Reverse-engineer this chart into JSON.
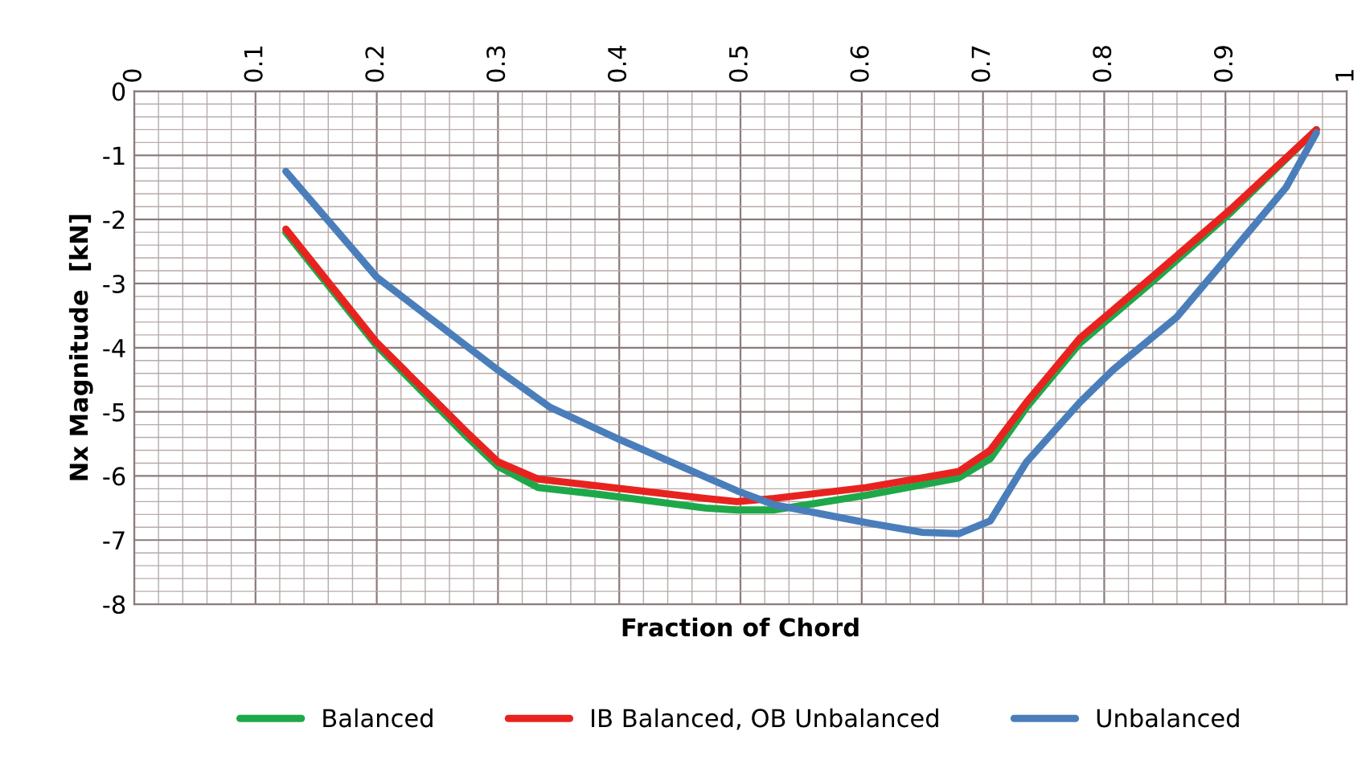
{
  "chart_data": {
    "type": "line",
    "xlabel": "Fraction of Chord",
    "ylabel": "Nx Magnitude  [kN]",
    "xlim": [
      0,
      1
    ],
    "ylim": [
      -8,
      0
    ],
    "xticks": [
      0,
      0.1,
      0.2,
      0.3,
      0.4,
      0.5,
      0.6,
      0.7,
      0.8,
      0.9,
      1
    ],
    "yticks": [
      -8,
      -7,
      -6,
      -5,
      -4,
      -3,
      -2,
      -1,
      0
    ],
    "grid": true,
    "legend": "bottom",
    "marker": "none",
    "line_style": "solid",
    "series": [
      {
        "name": "Balanced",
        "color": "#1fa84a",
        "x": [
          0.125,
          0.2,
          0.276,
          0.3,
          0.333,
          0.38,
          0.471,
          0.497,
          0.528,
          0.604,
          0.68,
          0.706,
          0.736,
          0.78,
          0.838,
          0.905,
          0.975
        ],
        "values": [
          -2.2,
          -3.97,
          -5.42,
          -5.85,
          -6.18,
          -6.28,
          -6.5,
          -6.53,
          -6.53,
          -6.3,
          -6.03,
          -5.73,
          -4.93,
          -3.93,
          -3.0,
          -1.88,
          -0.6
        ]
      },
      {
        "name": "IB Balanced, OB Unbalanced",
        "color": "#e8231f",
        "x": [
          0.125,
          0.2,
          0.276,
          0.3,
          0.333,
          0.38,
          0.471,
          0.497,
          0.528,
          0.604,
          0.68,
          0.706,
          0.736,
          0.78,
          0.838,
          0.905,
          0.975
        ],
        "values": [
          -2.15,
          -3.92,
          -5.35,
          -5.78,
          -6.05,
          -6.15,
          -6.35,
          -6.4,
          -6.35,
          -6.18,
          -5.93,
          -5.6,
          -4.85,
          -3.85,
          -2.92,
          -1.83,
          -0.6
        ]
      },
      {
        "name": "Unbalanced",
        "color": "#4a7ebb",
        "x": [
          0.125,
          0.2,
          0.3,
          0.343,
          0.4,
          0.497,
          0.528,
          0.604,
          0.65,
          0.68,
          0.706,
          0.736,
          0.78,
          0.807,
          0.86,
          0.91,
          0.95,
          0.975
        ],
        "values": [
          -1.25,
          -2.9,
          -4.35,
          -4.93,
          -5.43,
          -6.23,
          -6.45,
          -6.73,
          -6.88,
          -6.9,
          -6.7,
          -5.78,
          -4.85,
          -4.35,
          -3.52,
          -2.4,
          -1.5,
          -0.65
        ]
      }
    ]
  }
}
